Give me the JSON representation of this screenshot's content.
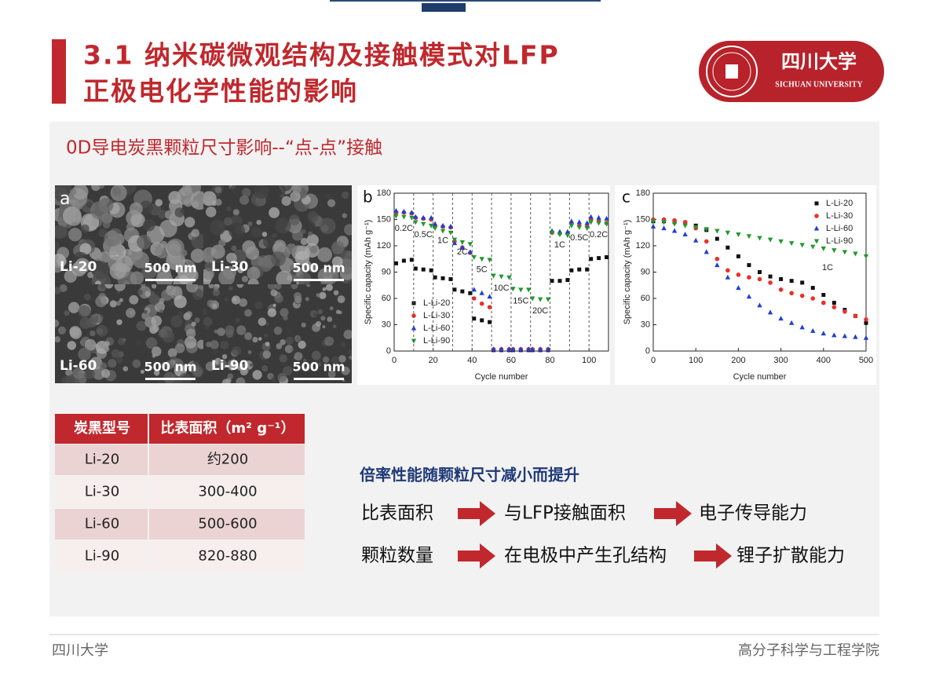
{
  "header": {
    "title_lines": [
      "3.1  纳米碳微观结构及接触模式对LFP",
      "正极电化学性能的影响"
    ],
    "logo_cn": "四川大学",
    "logo_en": "SICHUAN UNIVERSITY"
  },
  "subtitle": "0D导电炭黑颗粒尺寸影响--“点-点”接触",
  "panel_a": {
    "letter": "a",
    "images": [
      {
        "label": "Li-20",
        "scale": "500 nm"
      },
      {
        "label": "Li-30",
        "scale": "500 nm"
      },
      {
        "label": "Li-60",
        "scale": "500 nm"
      },
      {
        "label": "Li-90",
        "scale": "500 nm"
      }
    ]
  },
  "chart_b": {
    "type": "scatter",
    "letter": "b",
    "x_label": "Cycle number",
    "y_label": "Specific capacity (mAh g⁻¹)",
    "xlim": [
      0,
      110
    ],
    "xticks": [
      0,
      20,
      40,
      60,
      80,
      100
    ],
    "ylim": [
      0,
      180
    ],
    "yticks": [
      0,
      30,
      60,
      90,
      120,
      150,
      180
    ],
    "rate_labels": [
      "0.2C",
      "0.5C",
      "1C",
      "2C",
      "5C",
      "10C",
      "15C",
      "20C",
      "1C",
      "0.5C",
      "0.2C"
    ],
    "x": [
      1,
      5,
      9,
      11,
      15,
      19,
      21,
      25,
      29,
      31,
      35,
      39,
      41,
      45,
      49,
      51,
      55,
      59,
      61,
      65,
      69,
      71,
      75,
      79,
      81,
      85,
      89,
      91,
      95,
      99,
      101,
      105,
      109
    ],
    "series": [
      {
        "name": "L-Li-20",
        "color": "#111111",
        "values": [
          100,
          103,
          104,
          94,
          93,
          92,
          84,
          83,
          82,
          70,
          68,
          66,
          37,
          35,
          33,
          1,
          1,
          1,
          1,
          1,
          1,
          1,
          1,
          1,
          80,
          80,
          81,
          92,
          93,
          93,
          105,
          106,
          107
        ]
      },
      {
        "name": "L-Li-30",
        "color": "#e8312a",
        "values": [
          158,
          158,
          157,
          152,
          151,
          150,
          143,
          142,
          141,
          125,
          118,
          112,
          60,
          54,
          50,
          2,
          2,
          2,
          2,
          2,
          2,
          2,
          2,
          2,
          135,
          134,
          134,
          145,
          143,
          142,
          150,
          148,
          146
        ]
      },
      {
        "name": "L-Li-60",
        "color": "#1f3fd6",
        "values": [
          160,
          159,
          158,
          153,
          152,
          152,
          145,
          143,
          142,
          123,
          118,
          113,
          70,
          66,
          62,
          2,
          2,
          2,
          2,
          2,
          2,
          2,
          2,
          2,
          137,
          136,
          136,
          148,
          147,
          146,
          153,
          152,
          151
        ]
      },
      {
        "name": "L-Li-90",
        "color": "#1e9a2c",
        "values": [
          154,
          153,
          152,
          147,
          145,
          143,
          140,
          137,
          135,
          127,
          124,
          122,
          107,
          105,
          104,
          86,
          85,
          84,
          71,
          70,
          70,
          60,
          59,
          59,
          135,
          133,
          132,
          143,
          141,
          140,
          147,
          146,
          145
        ]
      }
    ]
  },
  "chart_c": {
    "type": "scatter",
    "letter": "c",
    "x_label": "Cycle number",
    "y_label": "Specific capacity (mAh g⁻¹)",
    "annotation": "1C",
    "xlim": [
      0,
      500
    ],
    "xticks": [
      0,
      100,
      200,
      300,
      400,
      500
    ],
    "ylim": [
      0,
      180
    ],
    "yticks": [
      0,
      30,
      60,
      90,
      120,
      150,
      180
    ],
    "x": [
      0,
      25,
      50,
      75,
      100,
      125,
      150,
      175,
      200,
      225,
      250,
      275,
      300,
      325,
      350,
      375,
      400,
      425,
      450,
      475,
      500
    ],
    "series": [
      {
        "name": "L-Li-20",
        "color": "#111111",
        "values": [
          148,
          148,
          147,
          146,
          143,
          138,
          128,
          118,
          108,
          98,
          90,
          85,
          82,
          80,
          78,
          72,
          64,
          55,
          47,
          40,
          32
        ]
      },
      {
        "name": "L-Li-30",
        "color": "#e8312a",
        "values": [
          150,
          150,
          149,
          147,
          140,
          125,
          105,
          92,
          87,
          84,
          82,
          78,
          70,
          66,
          63,
          60,
          55,
          50,
          45,
          40,
          36
        ]
      },
      {
        "name": "L-Li-60",
        "color": "#1f3fd6",
        "values": [
          142,
          140,
          137,
          133,
          126,
          113,
          98,
          84,
          72,
          62,
          52,
          44,
          37,
          32,
          27,
          23,
          20,
          18,
          17,
          16,
          15
        ]
      },
      {
        "name": "L-Li-90",
        "color": "#1e9a2c",
        "values": [
          148,
          147,
          145,
          143,
          141,
          139,
          137,
          135,
          133,
          131,
          129,
          127,
          125,
          123,
          121,
          119,
          117,
          115,
          113,
          111,
          108
        ]
      }
    ]
  },
  "table": {
    "header": [
      "炭黑型号",
      "比表面积（m² g⁻¹）"
    ],
    "rows": [
      [
        "Li-20",
        "约200"
      ],
      [
        "Li-30",
        "300-400"
      ],
      [
        "Li-60",
        "500-600"
      ],
      [
        "Li-90",
        "820-880"
      ]
    ]
  },
  "conclusion": {
    "title": "倍率性能随颗粒尺寸减小而提升",
    "rows": [
      [
        "比表面积",
        "与LFP接触面积",
        "电子传导能力"
      ],
      [
        "颗粒数量",
        "在电极中产生孔结构",
        "锂子扩散能力"
      ]
    ]
  },
  "footer": {
    "left": "四川大学",
    "right": "高分子科学与工程学院"
  }
}
